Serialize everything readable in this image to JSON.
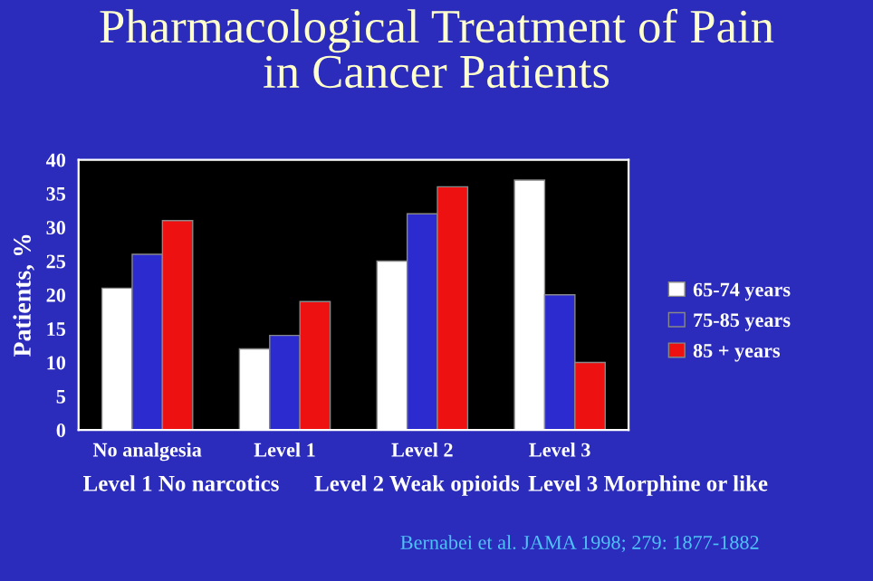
{
  "chart_data": {
    "type": "bar",
    "title": "Pharmacological Treatment of Pain\nin Cancer Patients",
    "ylabel": "Patients, %",
    "categories": [
      "No analgesia",
      "Level 1",
      "Level 2",
      "Level 3"
    ],
    "series": [
      {
        "name": "65-74 years",
        "color": "#ffffff",
        "values": [
          21,
          12,
          25,
          37
        ]
      },
      {
        "name": "75-85 years",
        "color": "#2b2bd0",
        "values": [
          26,
          14,
          32,
          20
        ]
      },
      {
        "name": "85 + years",
        "color": "#ee1111",
        "values": [
          31,
          19,
          36,
          10
        ]
      }
    ],
    "ylim": [
      0,
      40
    ],
    "yticks": [
      0,
      5,
      10,
      15,
      20,
      25,
      30,
      35,
      40
    ],
    "grid": false,
    "legend": "right",
    "annotations": [
      "Level 1 No narcotics",
      "Level 2 Weak opioids",
      "Level 3 Morphine or like",
      "Bernabei et al. JAMA 1998; 279: 1877-1882"
    ]
  }
}
